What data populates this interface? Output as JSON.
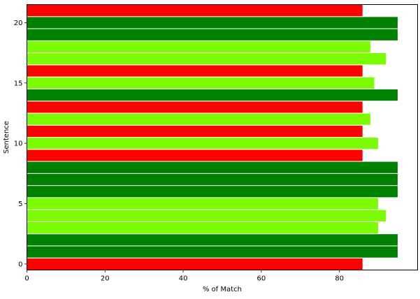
{
  "chart_data": {
    "type": "bar",
    "orientation": "horizontal",
    "xlabel": "% of Match",
    "ylabel": "Sentence",
    "xlim": [
      0,
      100
    ],
    "ylim": [
      -0.5,
      21.5
    ],
    "x_ticks": [
      0,
      20,
      40,
      60,
      80
    ],
    "y_ticks": [
      0,
      5,
      10,
      15,
      20
    ],
    "grid": false,
    "colors": {
      "red": "#ff0000",
      "lime": "#7cfc00",
      "green": "#008000"
    },
    "categories": [
      0,
      1,
      2,
      3,
      4,
      5,
      6,
      7,
      8,
      9,
      10,
      11,
      12,
      13,
      14,
      15,
      16,
      17,
      18,
      19,
      20,
      21
    ],
    "values": [
      86,
      95,
      95,
      90,
      92,
      90,
      95,
      95,
      95,
      86,
      90,
      86,
      88,
      86,
      95,
      89,
      86,
      92,
      88,
      95,
      95,
      86
    ],
    "bar_colors": [
      "red",
      "green",
      "green",
      "lime",
      "lime",
      "lime",
      "green",
      "green",
      "green",
      "red",
      "lime",
      "red",
      "lime",
      "red",
      "green",
      "lime",
      "red",
      "lime",
      "lime",
      "green",
      "green",
      "red"
    ]
  }
}
